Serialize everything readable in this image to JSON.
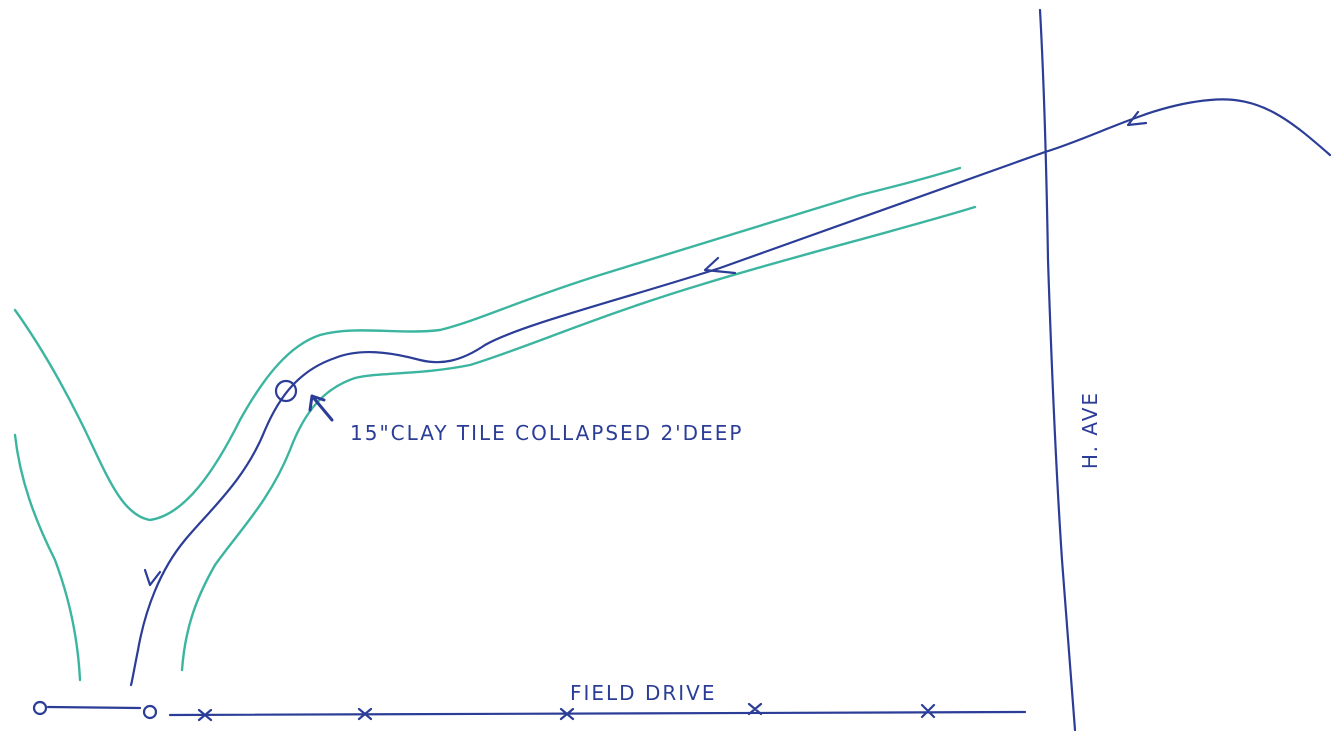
{
  "annotations": {
    "collapse": "15\"CLAY TILE COLLAPSED 2'DEEP",
    "road": "H. AVE",
    "drive": "FIELD DRIVE"
  }
}
